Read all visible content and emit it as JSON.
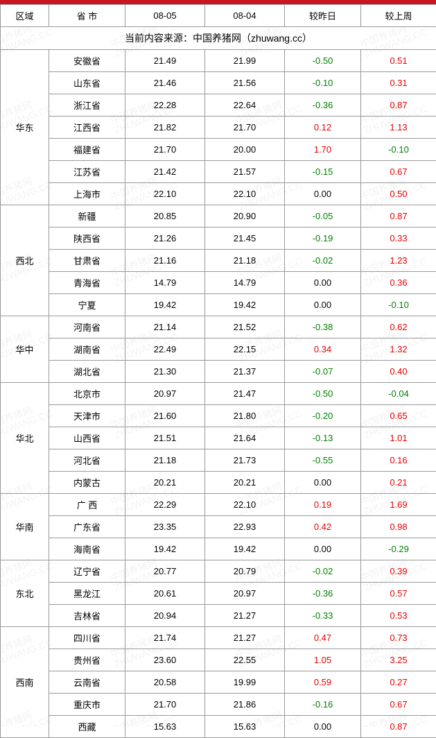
{
  "top_bar_color": "#c81623",
  "headers": {
    "region": "区域",
    "province": "省 市",
    "date1": "08-05",
    "date2": "08-04",
    "diff_day": "较昨日",
    "diff_week": "较上周"
  },
  "source_line": "当前内容来源：中国养猪网（zhuwang.cc）",
  "watermark": {
    "line1": "中国养猪网",
    "line2": "ZHUWANG.CC"
  },
  "colors": {
    "pos": "#e60000",
    "neg": "#008000",
    "zero": "#000000",
    "border": "#999999"
  },
  "regions": [
    {
      "name": "华东",
      "rows": [
        {
          "province": "安徽省",
          "d1": "21.49",
          "d2": "21.99",
          "dd": "-0.50",
          "dw": "0.51"
        },
        {
          "province": "山东省",
          "d1": "21.46",
          "d2": "21.56",
          "dd": "-0.10",
          "dw": "0.31"
        },
        {
          "province": "浙江省",
          "d1": "22.28",
          "d2": "22.64",
          "dd": "-0.36",
          "dw": "0.87"
        },
        {
          "province": "江西省",
          "d1": "21.82",
          "d2": "21.70",
          "dd": "0.12",
          "dw": "1.13"
        },
        {
          "province": "福建省",
          "d1": "21.70",
          "d2": "20.00",
          "dd": "1.70",
          "dw": "-0.10"
        },
        {
          "province": "江苏省",
          "d1": "21.42",
          "d2": "21.57",
          "dd": "-0.15",
          "dw": "0.67"
        },
        {
          "province": "上海市",
          "d1": "22.10",
          "d2": "22.10",
          "dd": "0.00",
          "dw": "0.50"
        }
      ]
    },
    {
      "name": "西北",
      "rows": [
        {
          "province": "新疆",
          "d1": "20.85",
          "d2": "20.90",
          "dd": "-0.05",
          "dw": "0.87"
        },
        {
          "province": "陕西省",
          "d1": "21.26",
          "d2": "21.45",
          "dd": "-0.19",
          "dw": "0.33"
        },
        {
          "province": "甘肃省",
          "d1": "21.16",
          "d2": "21.18",
          "dd": "-0.02",
          "dw": "1.23"
        },
        {
          "province": "青海省",
          "d1": "14.79",
          "d2": "14.79",
          "dd": "0.00",
          "dw": "0.36"
        },
        {
          "province": "宁夏",
          "d1": "19.42",
          "d2": "19.42",
          "dd": "0.00",
          "dw": "-0.10"
        }
      ]
    },
    {
      "name": "华中",
      "rows": [
        {
          "province": "河南省",
          "d1": "21.14",
          "d2": "21.52",
          "dd": "-0.38",
          "dw": "0.62"
        },
        {
          "province": "湖南省",
          "d1": "22.49",
          "d2": "22.15",
          "dd": "0.34",
          "dw": "1.32"
        },
        {
          "province": "湖北省",
          "d1": "21.30",
          "d2": "21.37",
          "dd": "-0.07",
          "dw": "0.40"
        }
      ]
    },
    {
      "name": "华北",
      "rows": [
        {
          "province": "北京市",
          "d1": "20.97",
          "d2": "21.47",
          "dd": "-0.50",
          "dw": "-0.04"
        },
        {
          "province": "天津市",
          "d1": "21.60",
          "d2": "21.80",
          "dd": "-0.20",
          "dw": "0.65"
        },
        {
          "province": "山西省",
          "d1": "21.51",
          "d2": "21.64",
          "dd": "-0.13",
          "dw": "1.01"
        },
        {
          "province": "河北省",
          "d1": "21.18",
          "d2": "21.73",
          "dd": "-0.55",
          "dw": "0.16"
        },
        {
          "province": "内蒙古",
          "d1": "20.21",
          "d2": "20.21",
          "dd": "0.00",
          "dw": "0.21"
        }
      ]
    },
    {
      "name": "华南",
      "rows": [
        {
          "province": "广 西",
          "d1": "22.29",
          "d2": "22.10",
          "dd": "0.19",
          "dw": "1.69"
        },
        {
          "province": "广东省",
          "d1": "23.35",
          "d2": "22.93",
          "dd": "0.42",
          "dw": "0.98"
        },
        {
          "province": "海南省",
          "d1": "19.42",
          "d2": "19.42",
          "dd": "0.00",
          "dw": "-0.29"
        }
      ]
    },
    {
      "name": "东北",
      "rows": [
        {
          "province": "辽宁省",
          "d1": "20.77",
          "d2": "20.79",
          "dd": "-0.02",
          "dw": "0.39"
        },
        {
          "province": "黑龙江",
          "d1": "20.61",
          "d2": "20.97",
          "dd": "-0.36",
          "dw": "0.57"
        },
        {
          "province": "吉林省",
          "d1": "20.94",
          "d2": "21.27",
          "dd": "-0.33",
          "dw": "0.53"
        }
      ]
    },
    {
      "name": "西南",
      "rows": [
        {
          "province": "四川省",
          "d1": "21.74",
          "d2": "21.27",
          "dd": "0.47",
          "dw": "0.73"
        },
        {
          "province": "贵州省",
          "d1": "23.60",
          "d2": "22.55",
          "dd": "1.05",
          "dw": "3.25"
        },
        {
          "province": "云南省",
          "d1": "20.58",
          "d2": "19.99",
          "dd": "0.59",
          "dw": "0.27"
        },
        {
          "province": "重庆市",
          "d1": "21.70",
          "d2": "21.86",
          "dd": "-0.16",
          "dw": "0.67"
        },
        {
          "province": "西藏",
          "d1": "15.63",
          "d2": "15.63",
          "dd": "0.00",
          "dw": "0.87"
        }
      ]
    }
  ]
}
